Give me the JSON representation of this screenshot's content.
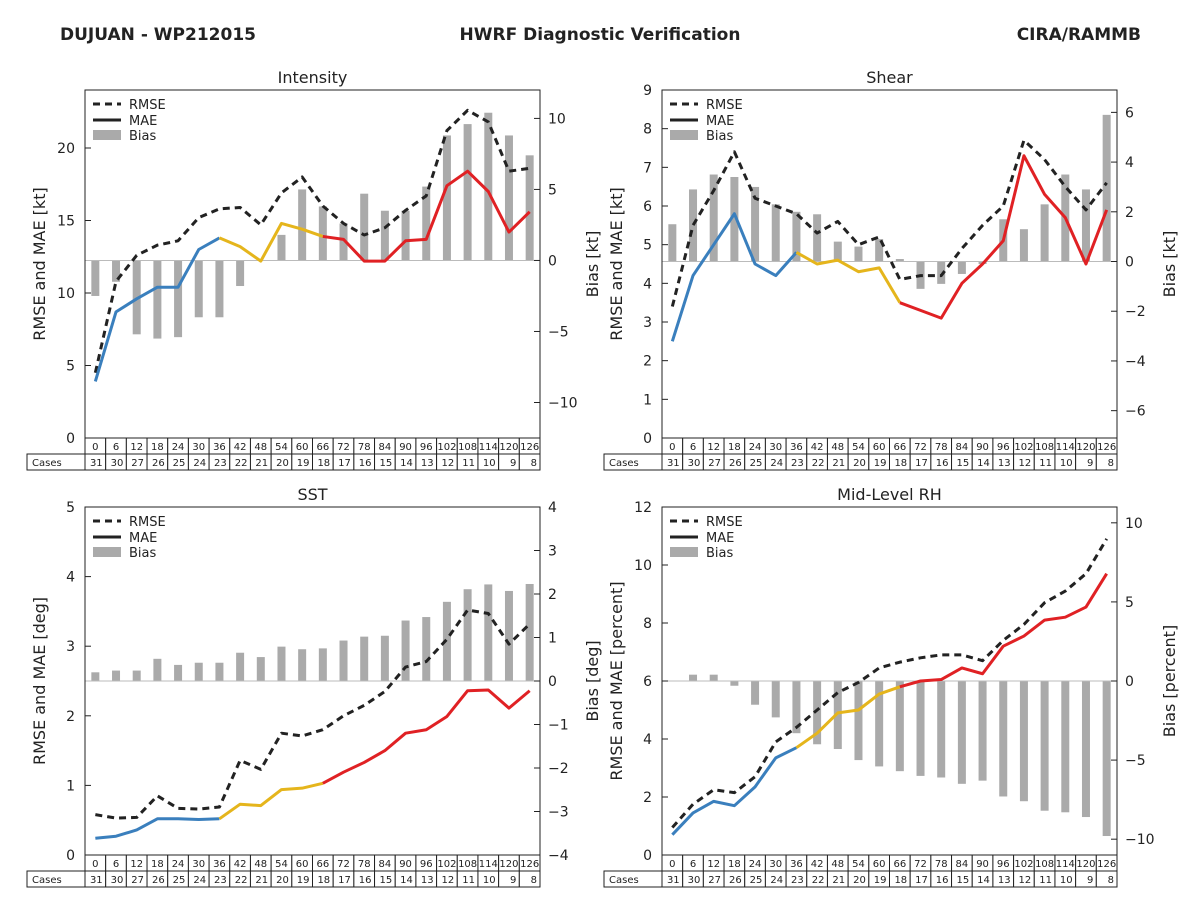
{
  "header": {
    "storm": "DUJUAN - WP212015",
    "title": "HWRF Diagnostic Verification",
    "org": "CIRA/RAMMB"
  },
  "legend": {
    "rmse": "RMSE",
    "mae": "MAE",
    "bias": "Bias"
  },
  "cases_label": "Cases",
  "colors": {
    "early": "#3a7fbd",
    "mid": "#e5b51c",
    "late": "#e02124",
    "rmse": "#222222",
    "bias": "#aaaaaa"
  },
  "chart_data": [
    {
      "type": "bar+line",
      "title": "Intensity",
      "ylabel": "RMSE and MAE [kt]",
      "y2label": "Bias [kt]",
      "ylim": [
        0,
        24
      ],
      "y2lim": [
        -12.5,
        12
      ],
      "yticks": [
        0,
        5,
        10,
        15,
        20
      ],
      "y2ticks": [
        -10,
        -5,
        0,
        5,
        10
      ],
      "y2ticklabels": [
        "−10",
        "−5",
        "0",
        "5",
        "10"
      ],
      "leads": [
        "0",
        "6",
        "12",
        "18",
        "24",
        "30",
        "36",
        "42",
        "48",
        "54",
        "60",
        "66",
        "72",
        "78",
        "84",
        "90",
        "96",
        "102",
        "108",
        "114",
        "120",
        "126"
      ],
      "cases": [
        "31",
        "30",
        "27",
        "26",
        "25",
        "24",
        "23",
        "22",
        "21",
        "20",
        "19",
        "18",
        "17",
        "16",
        "15",
        "14",
        "13",
        "12",
        "11",
        "10",
        "9",
        "8"
      ],
      "rmse": [
        4.5,
        10.8,
        12.6,
        13.3,
        13.6,
        15.2,
        15.8,
        15.9,
        14.7,
        16.9,
        18.0,
        16.0,
        14.8,
        14.0,
        14.5,
        15.7,
        16.7,
        21.2,
        22.6,
        21.8,
        18.4,
        18.6
      ],
      "mae": [
        3.9,
        8.7,
        9.6,
        10.4,
        10.4,
        13.0,
        13.8,
        13.2,
        12.2,
        14.8,
        14.4,
        13.9,
        13.7,
        12.2,
        12.2,
        13.6,
        13.7,
        17.4,
        18.4,
        17.0,
        14.2,
        15.6
      ],
      "bias": [
        -2.5,
        -1.5,
        -5.2,
        -5.5,
        -5.4,
        -4.0,
        -4.0,
        -1.8,
        0.0,
        1.8,
        5.0,
        3.8,
        2.6,
        4.7,
        3.5,
        3.5,
        5.2,
        8.8,
        9.6,
        10.4,
        8.8,
        7.4
      ]
    },
    {
      "type": "bar+line",
      "title": "Shear",
      "ylabel": "RMSE and MAE [kt]",
      "y2label": "Bias [kt]",
      "ylim": [
        0,
        9
      ],
      "y2lim": [
        -7.1,
        6.9
      ],
      "yticks": [
        0,
        1,
        2,
        3,
        4,
        5,
        6,
        7,
        8,
        9
      ],
      "y2ticks": [
        -6,
        -4,
        -2,
        0,
        2,
        4,
        6
      ],
      "y2ticklabels": [
        "−6",
        "−4",
        "−2",
        "0",
        "2",
        "4",
        "6"
      ],
      "leads": [
        "0",
        "6",
        "12",
        "18",
        "24",
        "30",
        "36",
        "42",
        "48",
        "54",
        "60",
        "66",
        "72",
        "78",
        "84",
        "90",
        "96",
        "102",
        "108",
        "114",
        "120",
        "126"
      ],
      "cases": [
        "31",
        "30",
        "27",
        "26",
        "25",
        "24",
        "23",
        "22",
        "21",
        "20",
        "19",
        "18",
        "17",
        "16",
        "15",
        "14",
        "13",
        "12",
        "11",
        "10",
        "9",
        "8"
      ],
      "rmse": [
        3.4,
        5.5,
        6.4,
        7.4,
        6.2,
        6.0,
        5.8,
        5.3,
        5.6,
        5.0,
        5.2,
        4.1,
        4.2,
        4.2,
        4.9,
        5.5,
        6.0,
        7.7,
        7.2,
        6.5,
        5.9,
        6.6
      ],
      "mae": [
        2.5,
        4.2,
        5.0,
        5.8,
        4.5,
        4.2,
        4.8,
        4.5,
        4.6,
        4.3,
        4.4,
        3.5,
        3.3,
        3.1,
        4.0,
        4.5,
        5.1,
        7.3,
        6.3,
        5.7,
        4.5,
        5.9
      ],
      "bias": [
        1.5,
        2.9,
        3.5,
        3.4,
        3.0,
        2.3,
        2.0,
        1.9,
        0.8,
        0.6,
        0.9,
        0.1,
        -1.1,
        -0.9,
        -0.5,
        -0.1,
        1.7,
        1.3,
        2.3,
        3.5,
        2.9,
        5.9
      ]
    },
    {
      "type": "bar+line",
      "title": "SST",
      "ylabel": "RMSE and MAE [deg]",
      "y2label": "Bias [deg]",
      "ylim": [
        0,
        5
      ],
      "y2lim": [
        -4,
        4
      ],
      "yticks": [
        0,
        1,
        2,
        3,
        4,
        5
      ],
      "y2ticks": [
        -4,
        -3,
        -2,
        -1,
        0,
        1,
        2,
        3,
        4
      ],
      "y2ticklabels": [
        "−4",
        "−3",
        "−2",
        "−1",
        "0",
        "1",
        "2",
        "3",
        "4"
      ],
      "leads": [
        "0",
        "6",
        "12",
        "18",
        "24",
        "30",
        "36",
        "42",
        "48",
        "54",
        "60",
        "66",
        "72",
        "78",
        "84",
        "90",
        "96",
        "102",
        "108",
        "114",
        "120",
        "126"
      ],
      "cases": [
        "31",
        "30",
        "27",
        "26",
        "25",
        "24",
        "23",
        "22",
        "21",
        "20",
        "19",
        "18",
        "17",
        "16",
        "15",
        "14",
        "13",
        "12",
        "11",
        "10",
        "9",
        "8"
      ],
      "rmse": [
        0.58,
        0.53,
        0.54,
        0.85,
        0.67,
        0.66,
        0.69,
        1.36,
        1.23,
        1.75,
        1.71,
        1.8,
        2.0,
        2.15,
        2.35,
        2.7,
        2.78,
        3.1,
        3.52,
        3.47,
        3.03,
        3.32
      ],
      "mae": [
        0.24,
        0.27,
        0.36,
        0.52,
        0.52,
        0.51,
        0.52,
        0.73,
        0.71,
        0.94,
        0.96,
        1.03,
        1.19,
        1.33,
        1.5,
        1.75,
        1.8,
        1.99,
        2.36,
        2.37,
        2.11,
        2.36
      ],
      "bias": [
        0.2,
        0.24,
        0.24,
        0.51,
        0.37,
        0.42,
        0.42,
        0.65,
        0.55,
        0.79,
        0.73,
        0.75,
        0.93,
        1.02,
        1.04,
        1.39,
        1.47,
        1.82,
        2.11,
        2.22,
        2.07,
        2.23
      ]
    },
    {
      "type": "bar+line",
      "title": "Mid-Level RH",
      "ylabel": "RMSE and MAE [percent]",
      "y2label": "Bias [percent]",
      "ylim": [
        0,
        12
      ],
      "y2lim": [
        -11,
        11
      ],
      "yticks": [
        0,
        2,
        4,
        6,
        8,
        10,
        12
      ],
      "y2ticks": [
        -10,
        -5,
        0,
        5,
        10
      ],
      "y2ticklabels": [
        "−10",
        "−5",
        "0",
        "5",
        "10"
      ],
      "leads": [
        "0",
        "6",
        "12",
        "18",
        "24",
        "30",
        "36",
        "42",
        "48",
        "54",
        "60",
        "66",
        "72",
        "78",
        "84",
        "90",
        "96",
        "102",
        "108",
        "114",
        "120",
        "126"
      ],
      "cases": [
        "31",
        "30",
        "27",
        "26",
        "25",
        "24",
        "23",
        "22",
        "21",
        "20",
        "19",
        "18",
        "17",
        "16",
        "15",
        "14",
        "13",
        "12",
        "11",
        "10",
        "9",
        "8"
      ],
      "rmse": [
        0.95,
        1.75,
        2.25,
        2.15,
        2.7,
        3.9,
        4.4,
        5.0,
        5.6,
        5.95,
        6.45,
        6.65,
        6.8,
        6.9,
        6.9,
        6.7,
        7.4,
        7.95,
        8.7,
        9.1,
        9.7,
        10.9
      ],
      "mae": [
        0.7,
        1.45,
        1.85,
        1.7,
        2.35,
        3.35,
        3.7,
        4.2,
        4.9,
        5.0,
        5.55,
        5.8,
        6.0,
        6.05,
        6.45,
        6.25,
        7.2,
        7.55,
        8.1,
        8.2,
        8.55,
        9.7
      ],
      "bias": [
        0.0,
        0.4,
        0.4,
        -0.3,
        -1.5,
        -2.3,
        -3.3,
        -4.0,
        -4.3,
        -5.0,
        -5.4,
        -5.7,
        -6.0,
        -6.1,
        -6.5,
        -6.3,
        -7.3,
        -7.6,
        -8.2,
        -8.3,
        -8.6,
        -9.8
      ]
    }
  ]
}
